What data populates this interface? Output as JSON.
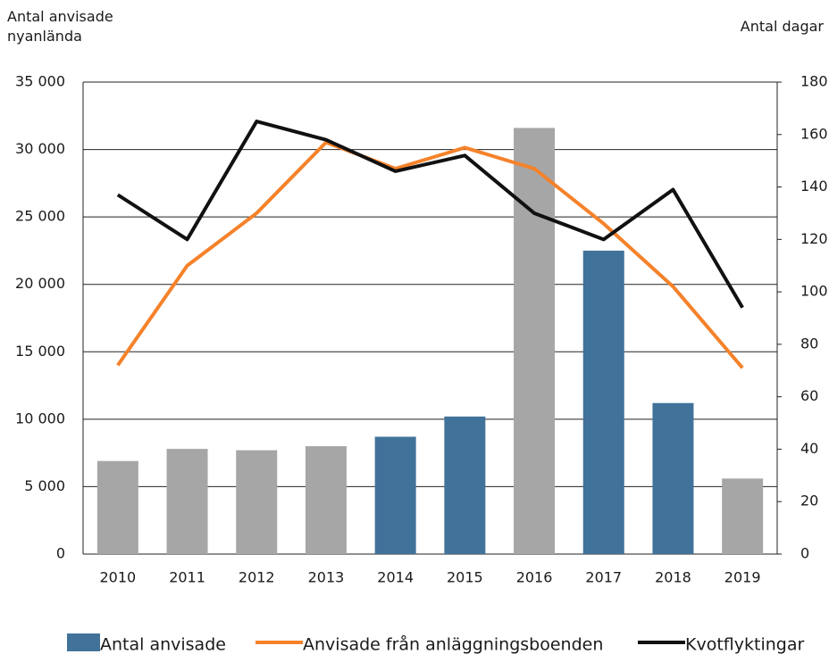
{
  "chart_data": {
    "type": "bar-line",
    "y_label": "Antal anvisade nyanlända",
    "y2_label": "Antal dagar",
    "categories": [
      "2010",
      "2011",
      "2012",
      "2013",
      "2014",
      "2015",
      "2016",
      "2017",
      "2018",
      "2019"
    ],
    "series": [
      {
        "name": "Antal anvisade",
        "type": "bar",
        "color": "#41729a",
        "colors": [
          "#a6a6a6",
          "#a6a6a6",
          "#a6a6a6",
          "#a6a6a6",
          "#41729a",
          "#41729a",
          "#a6a6a6",
          "#41729a",
          "#41729a",
          "#a6a6a6"
        ],
        "values": [
          6900,
          7800,
          7700,
          8000,
          8700,
          10200,
          31600,
          22500,
          11200,
          5600
        ]
      },
      {
        "name": "Anvisade från anläggningsboenden",
        "type": "line",
        "axis": "y2",
        "color": "#f5822a",
        "values": [
          72,
          110,
          130,
          157,
          147,
          155,
          147,
          126,
          102,
          71
        ]
      },
      {
        "name": "Kvotflyktingar",
        "type": "line",
        "axis": "y2",
        "color": "#111111",
        "values": [
          137,
          120,
          165,
          158,
          146,
          152,
          130,
          120,
          139,
          94
        ]
      }
    ],
    "ylim": [
      0,
      35000
    ],
    "yticks": [
      0,
      {
        "value": 5000,
        "label": "5 000"
      },
      {
        "value": 10000,
        "label": "10 000"
      },
      {
        "value": 15000,
        "label": "15 000"
      },
      {
        "value": 20000,
        "label": "20 000"
      },
      {
        "value": 25000,
        "label": "25 000"
      },
      {
        "value": 30000,
        "label": "30 000"
      },
      {
        "value": 35000,
        "label": "35 000"
      }
    ],
    "y2lim": [
      0,
      180
    ],
    "y2ticks": [
      0,
      20,
      40,
      60,
      80,
      100,
      120,
      140,
      160,
      180
    ],
    "grid": true
  }
}
